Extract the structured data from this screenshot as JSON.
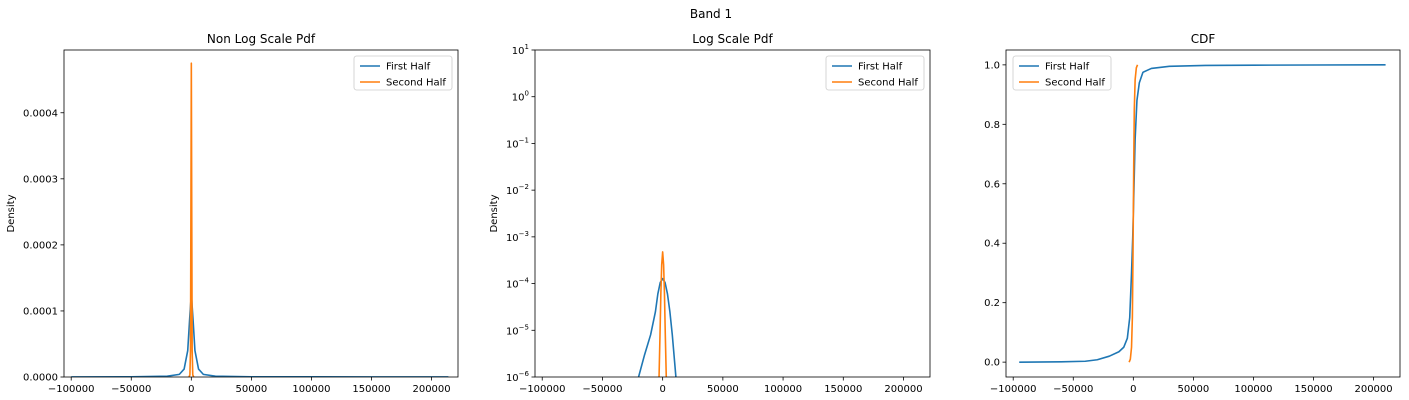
{
  "figure": {
    "suptitle": "Band 1"
  },
  "colors": {
    "first_half": "#1f77b4",
    "second_half": "#ff7f0e"
  },
  "chart_data": [
    {
      "type": "line",
      "title": "Non Log Scale Pdf",
      "xlabel": "",
      "ylabel": "Density",
      "yscale": "linear",
      "xlim": [
        -106000,
        222000
      ],
      "ylim": [
        0,
        0.000495
      ],
      "xticks": [
        -100000,
        -50000,
        0,
        50000,
        100000,
        150000,
        200000
      ],
      "xtick_labels": [
        "−100000",
        "−50000",
        "0",
        "50000",
        "100000",
        "150000",
        "200000"
      ],
      "yticks": [
        0,
        0.0001,
        0.0002,
        0.0003,
        0.0004
      ],
      "ytick_labels": [
        "0.0000",
        "0.0001",
        "0.0002",
        "0.0003",
        "0.0004"
      ],
      "grid": false,
      "legend": "upper right",
      "series": [
        {
          "name": "First Half",
          "x": [
            -100000,
            -50000,
            -20000,
            -10000,
            -6000,
            -3000,
            -1500,
            0,
            1500,
            3000,
            6000,
            10000,
            20000,
            50000,
            100000,
            150000,
            214000
          ],
          "y": [
            1e-07,
            4e-07,
            1.2e-06,
            4e-06,
            1.2e-05,
            4e-05,
            8.5e-05,
            0.000126,
            8.5e-05,
            4e-05,
            1.2e-05,
            4e-06,
            1.2e-06,
            4e-07,
            3e-07,
            2e-07,
            1e-07
          ]
        },
        {
          "name": "Second Half",
          "x": [
            -2000,
            -1200,
            -700,
            -300,
            0,
            300,
            700,
            1200,
            2000
          ],
          "y": [
            0,
            3e-06,
            4e-05,
            0.00028,
            0.000475,
            0.00028,
            4e-05,
            3e-06,
            0
          ]
        }
      ]
    },
    {
      "type": "line",
      "title": "Log Scale Pdf",
      "xlabel": "",
      "ylabel": "Density",
      "yscale": "log",
      "xlim": [
        -106000,
        222000
      ],
      "ylim": [
        1e-06,
        10
      ],
      "xticks": [
        -100000,
        -50000,
        0,
        50000,
        100000,
        150000,
        200000
      ],
      "xtick_labels": [
        "−100000",
        "−50000",
        "0",
        "50000",
        "100000",
        "150000",
        "200000"
      ],
      "yticks": [
        1e-06,
        1e-05,
        0.0001,
        0.001,
        0.01,
        0.1,
        1,
        10
      ],
      "ytick_exponents": [
        "−6",
        "−5",
        "−4",
        "−3",
        "−2",
        "−1",
        "0",
        "1"
      ],
      "ytick_base": "10",
      "grid": false,
      "legend": "upper right",
      "series": [
        {
          "name": "First Half",
          "x": [
            -20000,
            -15000,
            -10000,
            -6000,
            -4000,
            -2000,
            0,
            2000,
            4000,
            6000,
            8000,
            10000,
            11000
          ],
          "y": [
            1e-06,
            3e-06,
            8e-06,
            2.5e-05,
            6e-05,
            0.000105,
            0.000128,
            0.000105,
            6e-05,
            2.5e-05,
            8e-06,
            2e-06,
            1e-06
          ]
        },
        {
          "name": "Second Half",
          "x": [
            -3000,
            -2200,
            -1500,
            -800,
            0,
            800,
            1500,
            2200,
            3000
          ],
          "y": [
            1e-06,
            8e-06,
            6e-05,
            0.00025,
            0.000475,
            0.00025,
            6e-05,
            8e-06,
            1e-06
          ]
        }
      ]
    },
    {
      "type": "line",
      "title": "CDF",
      "xlabel": "",
      "ylabel": "",
      "yscale": "linear",
      "xlim": [
        -106000,
        222000
      ],
      "ylim": [
        -0.05,
        1.05
      ],
      "xticks": [
        -100000,
        -50000,
        0,
        50000,
        100000,
        150000,
        200000
      ],
      "xtick_labels": [
        "−100000",
        "−50000",
        "0",
        "50000",
        "100000",
        "150000",
        "200000"
      ],
      "yticks": [
        0,
        0.2,
        0.4,
        0.6,
        0.8,
        1.0
      ],
      "ytick_labels": [
        "0.0",
        "0.2",
        "0.4",
        "0.6",
        "0.8",
        "1.0"
      ],
      "grid": false,
      "legend": "upper left",
      "series": [
        {
          "name": "First Half",
          "x": [
            -95000,
            -60000,
            -40000,
            -30000,
            -20000,
            -12000,
            -8000,
            -5000,
            -3000,
            -1500,
            -500,
            0,
            500,
            1500,
            3000,
            5000,
            8000,
            15000,
            30000,
            60000,
            100000,
            150000,
            210000
          ],
          "y": [
            0,
            0.001,
            0.003,
            0.008,
            0.02,
            0.035,
            0.05,
            0.08,
            0.15,
            0.3,
            0.42,
            0.5,
            0.58,
            0.75,
            0.88,
            0.94,
            0.975,
            0.988,
            0.995,
            0.998,
            0.999,
            0.9995,
            1.0
          ]
        },
        {
          "name": "Second Half",
          "x": [
            -3500,
            -2500,
            -1500,
            -800,
            -300,
            0,
            300,
            800,
            1500,
            2500,
            3500
          ],
          "y": [
            0,
            0.01,
            0.05,
            0.15,
            0.35,
            0.5,
            0.65,
            0.85,
            0.95,
            0.99,
            1.0
          ]
        }
      ]
    }
  ]
}
